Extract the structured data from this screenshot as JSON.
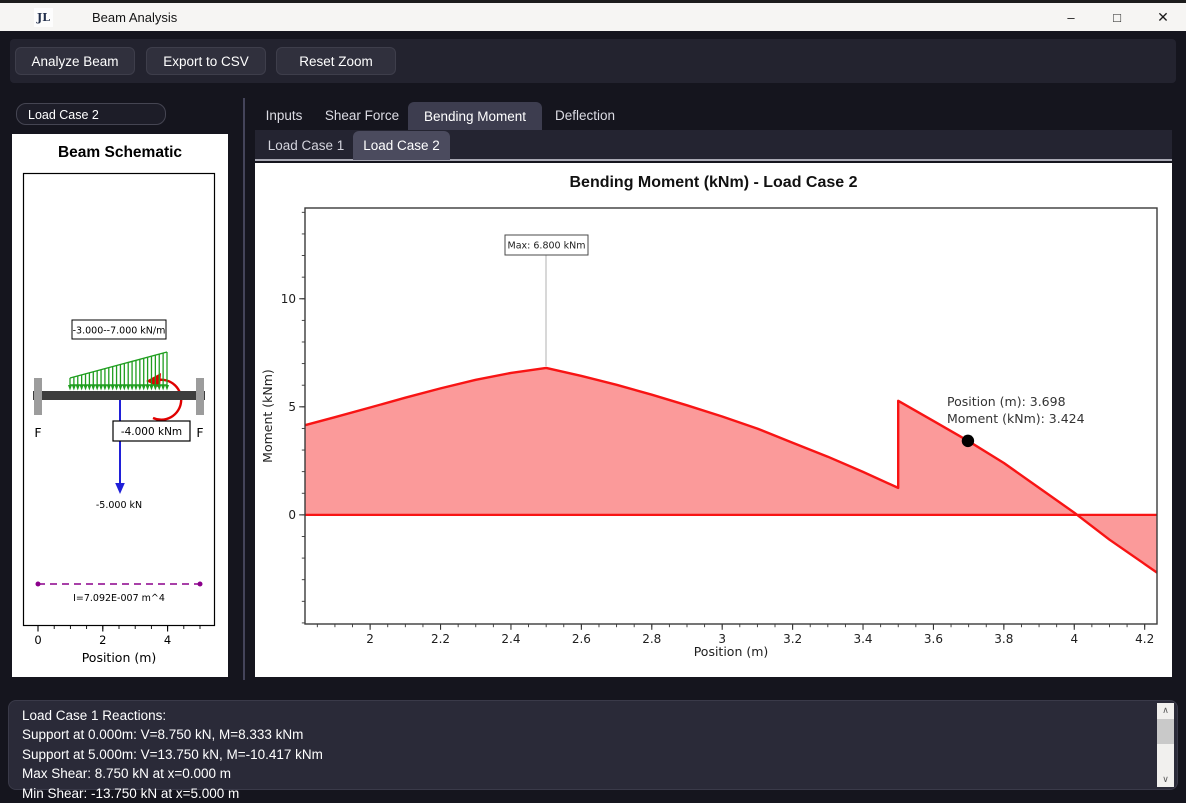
{
  "window": {
    "app_title": "Beam Analysis",
    "app_icon": "JL",
    "controls": {
      "minimize": "–",
      "maximize": "□",
      "close": "✕"
    }
  },
  "toolbar": {
    "analyze": "Analyze Beam",
    "export": "Export to CSV",
    "reset_zoom": "Reset Zoom"
  },
  "sidebar": {
    "load_case_selector": "Load Case 2",
    "schematic": {
      "title": "Beam Schematic",
      "distributed_load_label": "-3.000--7.000 kN/m",
      "moment_load_label": "-4.000 kNm",
      "point_load_label": "-5.000 kN",
      "inertia_label": "I=7.092E-007 m^4",
      "left_support_label": "F",
      "right_support_label": "F",
      "xlabel": "Position (m)",
      "xticks": [
        0,
        2,
        4
      ],
      "beam_length_m": 5
    }
  },
  "tabs": {
    "items": [
      "Inputs",
      "Shear Force",
      "Bending Moment",
      "Deflection"
    ],
    "active": "Bending Moment"
  },
  "subtabs": {
    "items": [
      "Load Case 1",
      "Load Case 2"
    ],
    "active": "Load Case 2"
  },
  "chart_data": {
    "type": "area",
    "title": "Bending Moment (kNm) - Load Case 2",
    "xlabel": "Position (m)",
    "ylabel": "Moment (kNm)",
    "xlim": [
      1.815,
      4.235
    ],
    "ylim": [
      -5.05,
      14.2
    ],
    "xticks": [
      2,
      2.2,
      2.4,
      2.6,
      2.8,
      3,
      3.2,
      3.4,
      3.6,
      3.8,
      4,
      4.2
    ],
    "yticks": [
      0,
      5,
      10
    ],
    "x_minor_step": 0.05,
    "y_minor_step": 1,
    "grid": false,
    "legend": false,
    "x": [
      1.815,
      1.9,
      2.0,
      2.1,
      2.2,
      2.3,
      2.4,
      2.5,
      2.6,
      2.7,
      2.8,
      2.9,
      3.0,
      3.1,
      3.2,
      3.3,
      3.4,
      3.5,
      3.5,
      3.6,
      3.7,
      3.8,
      3.9,
      4.0,
      4.1,
      4.235
    ],
    "y": [
      4.15,
      4.52,
      4.97,
      5.42,
      5.85,
      6.25,
      6.57,
      6.8,
      6.43,
      6.02,
      5.56,
      5.07,
      4.55,
      3.99,
      3.34,
      2.69,
      1.99,
      1.25,
      5.28,
      4.35,
      3.41,
      2.4,
      1.25,
      0.1,
      -1.15,
      -2.67
    ],
    "line_color": "#f81414",
    "fill_color": "#fb9595",
    "annotation": {
      "text": "Max: 6.800 kNm",
      "x": 2.5,
      "y": 6.8
    },
    "cursor": {
      "x": 3.698,
      "y": 3.424,
      "line1": "Position (m): 3.698",
      "line2": "Moment (kNm): 3.424"
    }
  },
  "output_panel": {
    "lines": [
      "Load Case 1 Reactions:",
      "Support at 0.000m: V=8.750 kN, M=8.333 kNm",
      "Support at 5.000m: V=13.750 kN, M=-10.417 kNm",
      "Max Shear: 8.750 kN at x=0.000 m",
      "Min Shear: -13.750 kN at x=5.000 m"
    ]
  }
}
